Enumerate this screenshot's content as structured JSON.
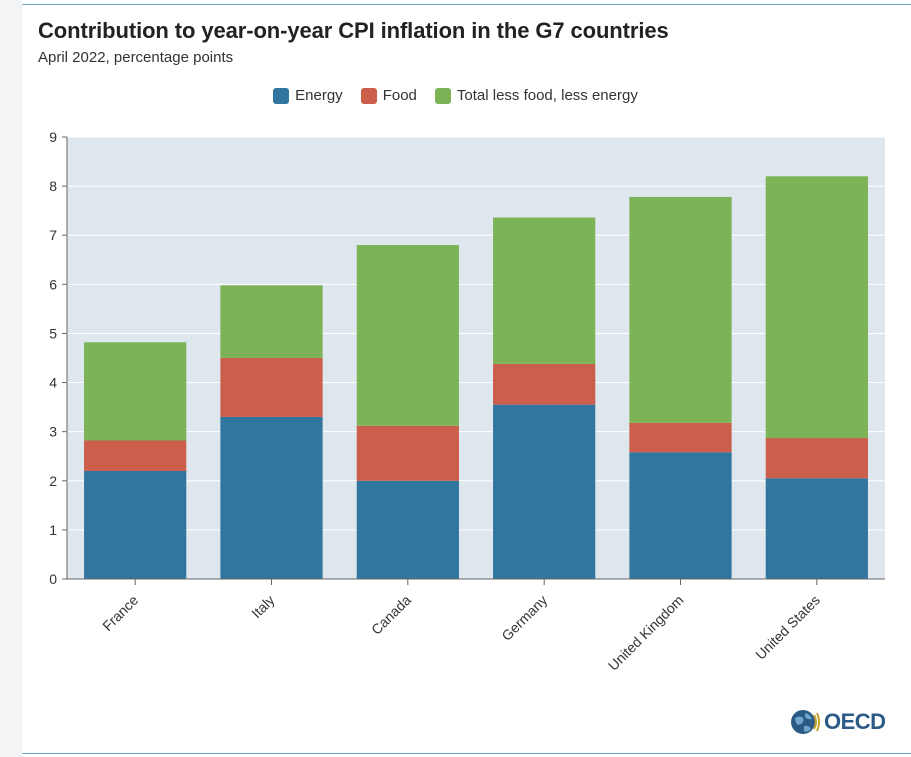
{
  "title": "Contribution to year-on-year CPI inflation in the G7 countries",
  "subtitle": "April 2022, percentage points",
  "logo_text": "OECD",
  "colors": {
    "energy": "#31769f",
    "food": "#cc5e4c",
    "total": "#7cb356",
    "plot_bg": "#dfe7ee",
    "grid": "#ffffff"
  },
  "chart_data": {
    "type": "bar",
    "stacked": true,
    "title": "Contribution to year-on-year CPI inflation in the G7 countries",
    "subtitle": "April 2022, percentage points",
    "xlabel": "",
    "ylabel": "",
    "ylim": [
      0,
      9
    ],
    "yticks": [
      0,
      1,
      2,
      3,
      4,
      5,
      6,
      7,
      8,
      9
    ],
    "grid": true,
    "legend_position": "top-center",
    "categories": [
      "France",
      "Italy",
      "Canada",
      "Germany",
      "United Kingdom",
      "United States"
    ],
    "series": [
      {
        "name": "Energy",
        "color": "#31769f",
        "values": [
          2.2,
          3.3,
          2.0,
          3.55,
          2.58,
          2.05
        ]
      },
      {
        "name": "Food",
        "color": "#cc5e4c",
        "values": [
          0.62,
          1.2,
          1.12,
          0.83,
          0.6,
          0.82
        ]
      },
      {
        "name": "Total less food, less energy",
        "color": "#7cb356",
        "values": [
          2.0,
          1.48,
          3.68,
          2.98,
          4.6,
          5.33
        ]
      }
    ]
  }
}
